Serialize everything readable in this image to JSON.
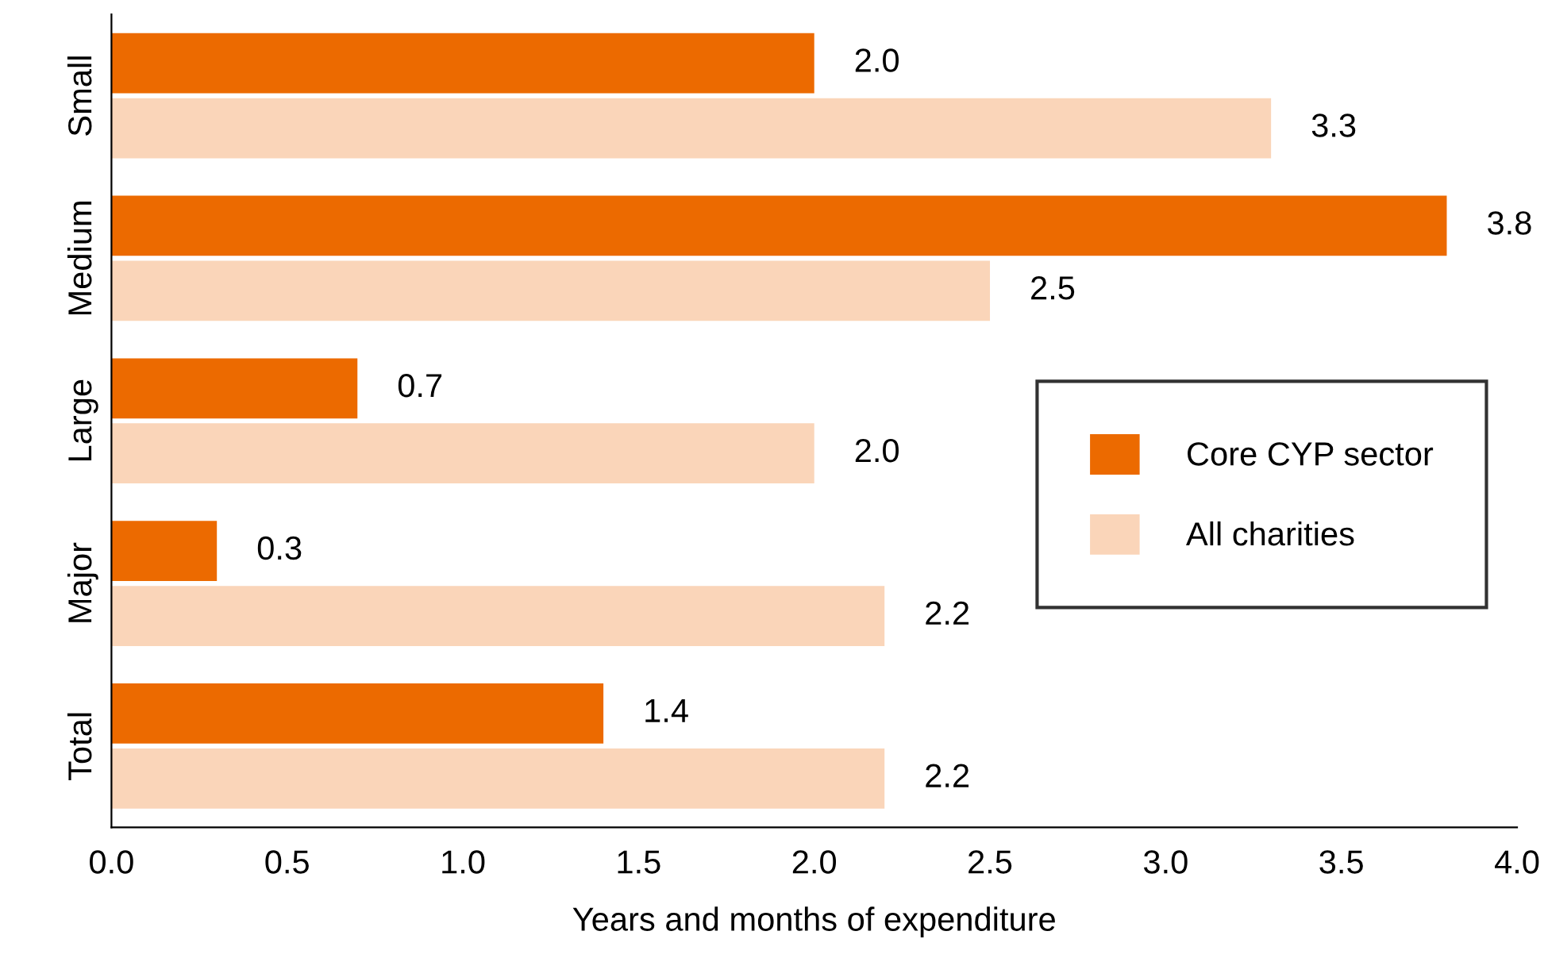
{
  "chart_data": {
    "type": "bar",
    "orientation": "horizontal",
    "xlabel": "Years and months of expenditure",
    "categories": [
      "Small",
      "Medium",
      "Large",
      "Major",
      "Total"
    ],
    "series": [
      {
        "name": "Core CYP sector",
        "color": "#ec6a00",
        "values": [
          2.0,
          3.8,
          0.7,
          0.3,
          1.4
        ],
        "value_labels": [
          "2.0",
          "3.8",
          "0.7",
          "0.3",
          "1.4"
        ]
      },
      {
        "name": "All charities",
        "color": "#fad5b9",
        "values": [
          3.3,
          2.5,
          2.0,
          2.2,
          2.2
        ],
        "value_labels": [
          "3.3",
          "2.5",
          "2.0",
          "2.2",
          "2.2"
        ]
      }
    ],
    "xlim": [
      0,
      4
    ],
    "xticks": [
      {
        "value": 0,
        "label": "0.0"
      },
      {
        "value": 0.5,
        "label": "0.5"
      },
      {
        "value": 1,
        "label": "1.0"
      },
      {
        "value": 1.5,
        "label": "1.5"
      },
      {
        "value": 2,
        "label": "2.0"
      },
      {
        "value": 2.5,
        "label": "2.5"
      },
      {
        "value": 3,
        "label": "3.0"
      },
      {
        "value": 3.5,
        "label": "3.5"
      },
      {
        "value": 4,
        "label": "4.0"
      }
    ],
    "grid": false,
    "legend": "right"
  }
}
